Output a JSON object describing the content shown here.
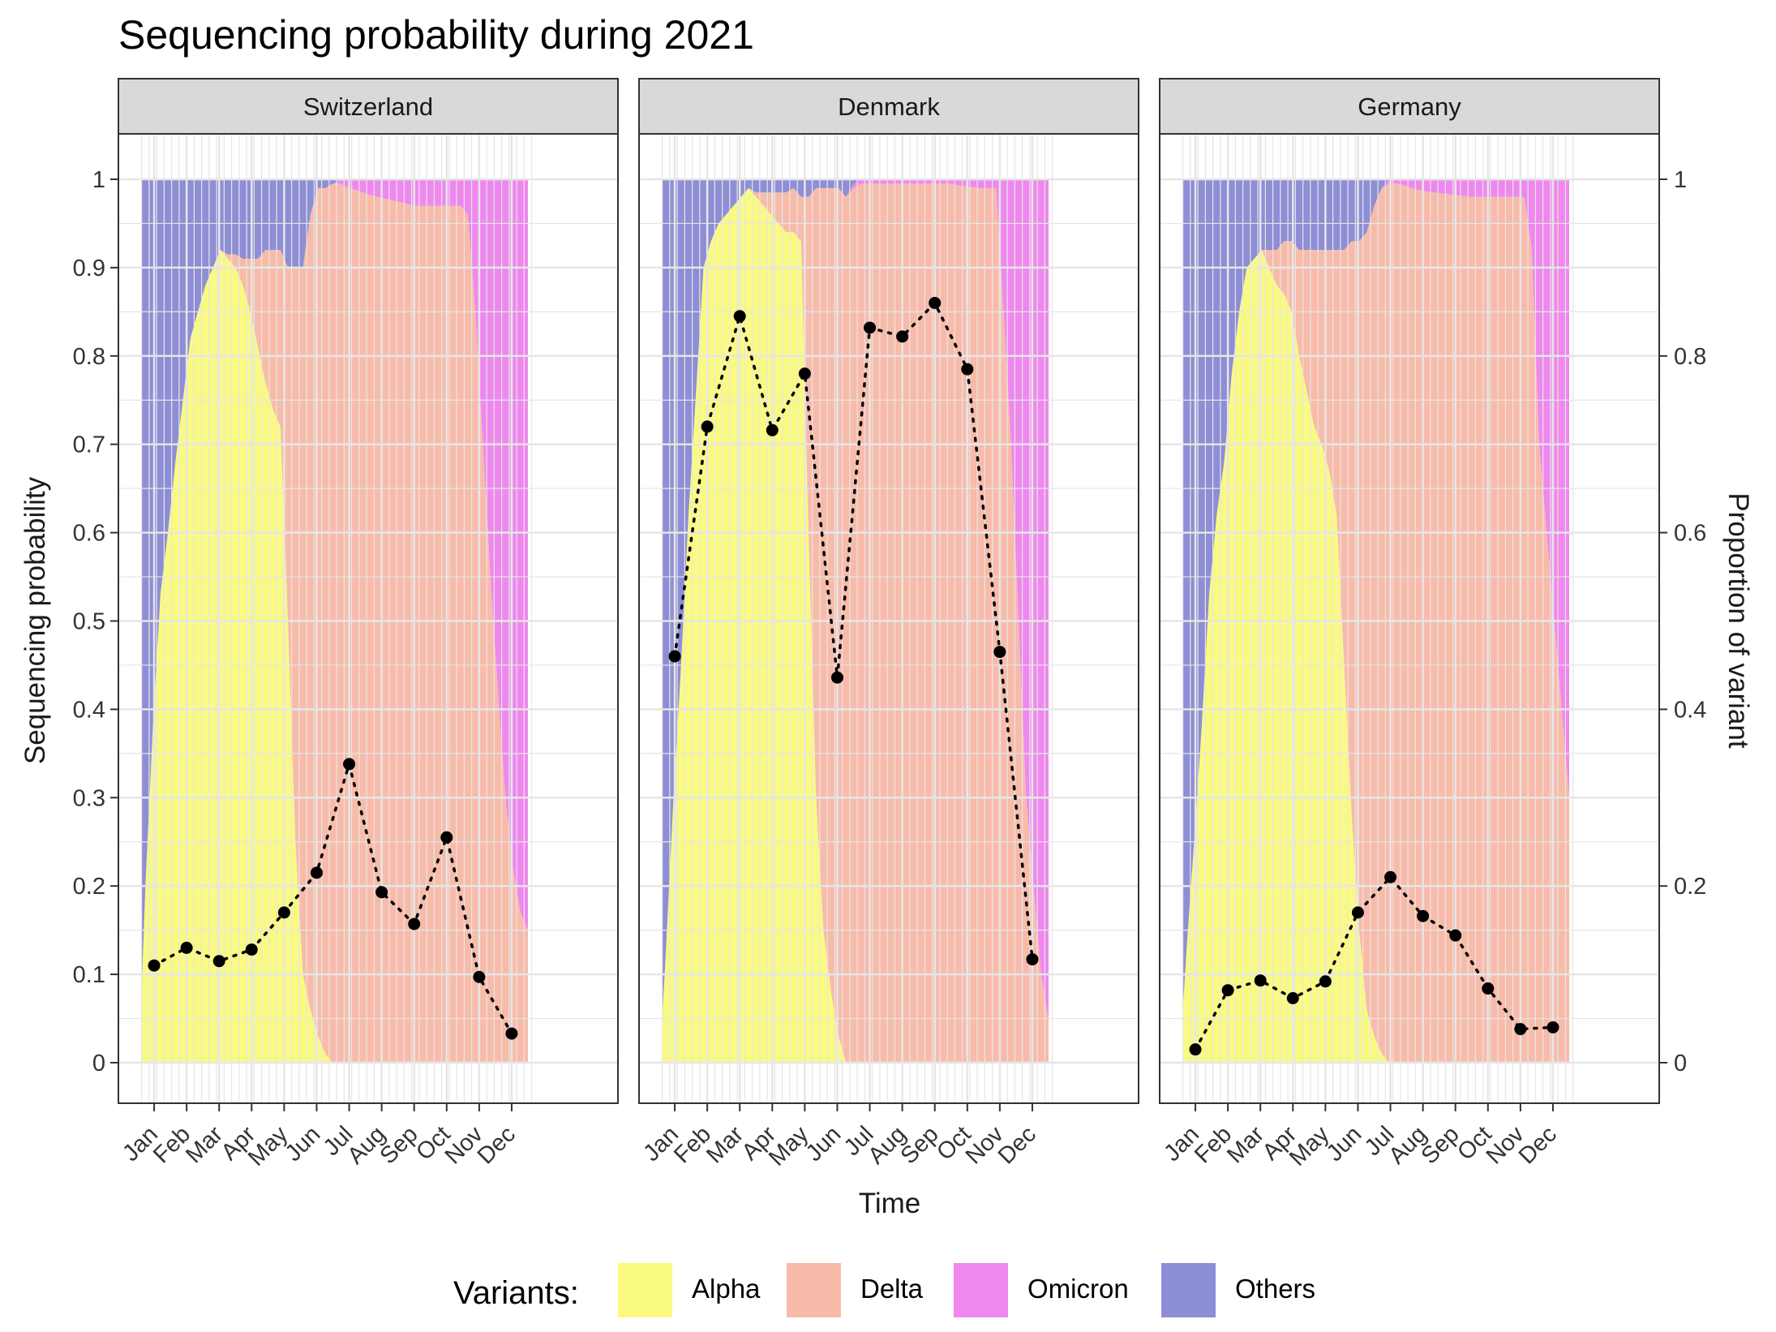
{
  "chart_data": {
    "type": "area",
    "title": "Sequencing probability during 2021",
    "xlabel": "Time",
    "ylabel": "Sequencing probability",
    "y2label": "Proportion of variant",
    "ylim": [
      0,
      1
    ],
    "y2lim": [
      0,
      1
    ],
    "y_ticks": [
      "0",
      "0.1",
      "0.2",
      "0.3",
      "0.4",
      "0.5",
      "0.6",
      "0.7",
      "0.8",
      "0.9",
      "1"
    ],
    "y2_ticks": [
      "0",
      "0.2",
      "0.4",
      "0.6",
      "0.8",
      "1"
    ],
    "months": [
      "Jan",
      "Feb",
      "Mar",
      "Apr",
      "May",
      "Jun",
      "Jul",
      "Aug",
      "Sep",
      "Oct",
      "Nov",
      "Dec"
    ],
    "grid": true,
    "legend": {
      "title": "Variants:",
      "position": "bottom",
      "items": [
        {
          "name": "Alpha",
          "color": "#FAFA80"
        },
        {
          "name": "Delta",
          "color": "#F8BBAA"
        },
        {
          "name": "Omicron",
          "color": "#EE88EE"
        },
        {
          "name": "Others",
          "color": "#8E8ED6"
        }
      ]
    },
    "panels": [
      {
        "name": "Switzerland",
        "weeks": [
          0.5,
          1,
          2,
          3,
          4,
          5,
          6,
          7,
          8,
          9,
          10,
          11,
          12,
          13,
          14,
          15,
          16,
          17,
          18,
          19,
          20,
          21,
          22,
          23,
          24,
          25,
          26,
          27,
          28,
          29,
          30,
          31,
          32,
          33,
          34,
          35,
          36,
          37,
          38,
          39,
          40,
          41,
          42,
          43,
          44,
          45,
          46,
          47,
          48,
          49,
          50,
          51,
          52
        ],
        "alpha": [
          0.08,
          0.2,
          0.38,
          0.53,
          0.6,
          0.68,
          0.75,
          0.82,
          0.85,
          0.88,
          0.9,
          0.92,
          0.91,
          0.9,
          0.88,
          0.85,
          0.81,
          0.77,
          0.74,
          0.72,
          0.5,
          0.25,
          0.1,
          0.06,
          0.03,
          0.01,
          0,
          0,
          0,
          0,
          0,
          0,
          0,
          0,
          0,
          0,
          0,
          0,
          0,
          0,
          0,
          0,
          0,
          0,
          0,
          0,
          0,
          0,
          0,
          0,
          0,
          0,
          0
        ],
        "delta": [
          0,
          0,
          0,
          0,
          0,
          0,
          0,
          0,
          0,
          0,
          0,
          0,
          0.005,
          0.015,
          0.03,
          0.06,
          0.1,
          0.15,
          0.18,
          0.2,
          0.4,
          0.65,
          0.8,
          0.9,
          0.96,
          0.98,
          0.995,
          0.995,
          0.99,
          0.988,
          0.985,
          0.982,
          0.98,
          0.978,
          0.976,
          0.974,
          0.972,
          0.97,
          0.97,
          0.97,
          0.97,
          0.97,
          0.97,
          0.97,
          0.96,
          0.85,
          0.7,
          0.55,
          0.42,
          0.3,
          0.22,
          0.17,
          0.15
        ],
        "omicron": [
          0,
          0,
          0,
          0,
          0,
          0,
          0,
          0,
          0,
          0,
          0,
          0,
          0,
          0,
          0,
          0,
          0,
          0,
          0,
          0,
          0,
          0,
          0,
          0,
          0,
          0,
          0,
          0.005,
          0.01,
          0.012,
          0.015,
          0.018,
          0.02,
          0.022,
          0.024,
          0.026,
          0.028,
          0.03,
          0.03,
          0.03,
          0.03,
          0.03,
          0.03,
          0.03,
          0.04,
          0.15,
          0.3,
          0.45,
          0.58,
          0.7,
          0.78,
          0.83,
          0.85
        ],
        "seq_prob": [
          0.11,
          0.13,
          0.115,
          0.128,
          0.17,
          0.215,
          0.338,
          0.193,
          0.157,
          0.255,
          0.097,
          0.033
        ]
      },
      {
        "name": "Denmark",
        "weeks": [
          0.5,
          1,
          2,
          3,
          4,
          5,
          6,
          7,
          8,
          9,
          10,
          11,
          12,
          13,
          14,
          15,
          16,
          17,
          18,
          19,
          20,
          21,
          22,
          23,
          24,
          25,
          26,
          27,
          28,
          29,
          30,
          31,
          32,
          33,
          34,
          35,
          36,
          37,
          38,
          39,
          40,
          41,
          42,
          43,
          44,
          45,
          46,
          47,
          48,
          49,
          50,
          51,
          52
        ],
        "alpha": [
          0.05,
          0.13,
          0.3,
          0.45,
          0.62,
          0.76,
          0.9,
          0.93,
          0.95,
          0.96,
          0.97,
          0.98,
          0.99,
          0.98,
          0.97,
          0.96,
          0.95,
          0.94,
          0.94,
          0.93,
          0.6,
          0.3,
          0.15,
          0.08,
          0.03,
          0,
          0,
          0,
          0,
          0,
          0,
          0,
          0,
          0,
          0,
          0,
          0,
          0,
          0,
          0,
          0,
          0,
          0,
          0,
          0,
          0,
          0,
          0,
          0,
          0,
          0,
          0,
          0
        ],
        "delta": [
          0,
          0,
          0,
          0,
          0,
          0,
          0,
          0,
          0,
          0,
          0,
          0,
          0,
          0.005,
          0.015,
          0.025,
          0.035,
          0.045,
          0.05,
          0.05,
          0.38,
          0.69,
          0.84,
          0.91,
          0.96,
          0.98,
          0.99,
          0.995,
          0.995,
          0.995,
          0.995,
          0.995,
          0.995,
          0.995,
          0.995,
          0.995,
          0.995,
          0.995,
          0.995,
          0.995,
          0.993,
          0.992,
          0.991,
          0.99,
          0.99,
          0.99,
          0.85,
          0.7,
          0.5,
          0.3,
          0.2,
          0.1,
          0.05
        ],
        "omicron": [
          0,
          0,
          0,
          0,
          0,
          0,
          0,
          0,
          0,
          0,
          0,
          0,
          0,
          0,
          0,
          0,
          0,
          0,
          0,
          0,
          0,
          0,
          0,
          0,
          0,
          0,
          0.005,
          0.005,
          0.005,
          0.005,
          0.005,
          0.005,
          0.005,
          0.005,
          0.005,
          0.005,
          0.005,
          0.005,
          0.005,
          0.005,
          0.007,
          0.008,
          0.009,
          0.01,
          0.01,
          0.01,
          0.15,
          0.3,
          0.5,
          0.7,
          0.8,
          0.9,
          0.95
        ],
        "seq_prob": [
          0.46,
          0.72,
          0.845,
          0.716,
          0.78,
          0.436,
          0.832,
          0.822,
          0.86,
          0.785,
          0.465,
          0.117
        ]
      },
      {
        "name": "Germany",
        "weeks": [
          0.5,
          1,
          2,
          3,
          4,
          5,
          6,
          7,
          8,
          9,
          10,
          11,
          12,
          13,
          14,
          15,
          16,
          17,
          18,
          19,
          20,
          21,
          22,
          23,
          24,
          25,
          26,
          27,
          28,
          29,
          30,
          31,
          32,
          33,
          34,
          35,
          36,
          37,
          38,
          39,
          40,
          41,
          42,
          43,
          44,
          45,
          46,
          47,
          48,
          49,
          50,
          51,
          52
        ],
        "alpha": [
          0.06,
          0.13,
          0.25,
          0.38,
          0.53,
          0.62,
          0.68,
          0.78,
          0.85,
          0.9,
          0.91,
          0.92,
          0.9,
          0.88,
          0.87,
          0.85,
          0.8,
          0.76,
          0.72,
          0.7,
          0.67,
          0.62,
          0.45,
          0.28,
          0.15,
          0.06,
          0.03,
          0.01,
          0,
          0,
          0,
          0,
          0,
          0,
          0,
          0,
          0,
          0,
          0,
          0,
          0,
          0,
          0,
          0,
          0,
          0,
          0,
          0,
          0,
          0,
          0,
          0,
          0
        ],
        "delta": [
          0,
          0,
          0,
          0,
          0,
          0,
          0,
          0,
          0,
          0,
          0,
          0,
          0.02,
          0.04,
          0.06,
          0.08,
          0.12,
          0.16,
          0.2,
          0.22,
          0.25,
          0.3,
          0.47,
          0.65,
          0.78,
          0.88,
          0.94,
          0.98,
          0.995,
          0.995,
          0.993,
          0.99,
          0.988,
          0.986,
          0.985,
          0.984,
          0.983,
          0.982,
          0.981,
          0.98,
          0.98,
          0.98,
          0.98,
          0.98,
          0.98,
          0.98,
          0.98,
          0.92,
          0.7,
          0.6,
          0.5,
          0.4,
          0.3
        ],
        "omicron": [
          0,
          0,
          0,
          0,
          0,
          0,
          0,
          0,
          0,
          0,
          0,
          0,
          0,
          0,
          0,
          0,
          0,
          0,
          0,
          0,
          0,
          0,
          0,
          0,
          0,
          0,
          0,
          0,
          0.005,
          0.005,
          0.007,
          0.01,
          0.012,
          0.014,
          0.015,
          0.016,
          0.017,
          0.018,
          0.019,
          0.02,
          0.02,
          0.02,
          0.02,
          0.02,
          0.02,
          0.02,
          0.02,
          0.08,
          0.3,
          0.4,
          0.5,
          0.6,
          0.7
        ],
        "seq_prob": [
          0.015,
          0.082,
          0.093,
          0.073,
          0.092,
          0.17,
          0.21,
          0.166,
          0.144,
          0.084,
          0.038,
          0.04
        ]
      }
    ]
  }
}
